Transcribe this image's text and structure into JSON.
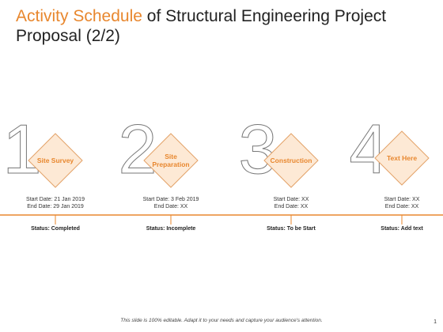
{
  "header": {
    "title_highlight": "Activity Schedule",
    "title_rest": "of Structural Engineering Project Proposal (2/2)"
  },
  "steps": [
    {
      "number": "1",
      "label": "Site Survey",
      "start": "Start Date: 21 Jan 2019",
      "end": "End Date: 29 Jan 2019",
      "status": "Status:  Completed"
    },
    {
      "number": "2",
      "label": "Site Preparation",
      "start": "Start Date: 3 Feb 2019",
      "end": "End Date: XX",
      "status": "Status:  Incomplete"
    },
    {
      "number": "3",
      "label": "Construction",
      "start": "Start Date: XX",
      "end": "End Date: XX",
      "status": "Status:  To be Start"
    },
    {
      "number": "4",
      "label": "Text Here",
      "start": "Start Date: XX",
      "end": "End Date: XX",
      "status": "Status:  Add text"
    }
  ],
  "footer": "This slide is 100% editable. Adapt it to your needs and capture your audience's attention.",
  "page_number": "1"
}
